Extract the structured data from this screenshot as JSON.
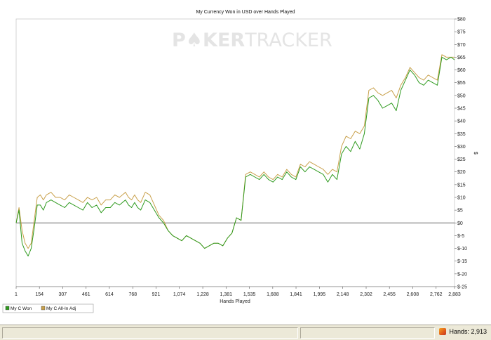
{
  "chart_data": {
    "type": "line",
    "title": "My Currency Won in USD over Hands Played",
    "xlabel": "Hands Played",
    "ylabel": "$",
    "watermark": [
      "P",
      "KER",
      "TRACKER"
    ],
    "x_ticks": [
      "1",
      "154",
      "307",
      "461",
      "614",
      "768",
      "921",
      "1,074",
      "1,228",
      "1,381",
      "1,535",
      "1,688",
      "1,841",
      "1,995",
      "2,148",
      "2,302",
      "2,455",
      "2,608",
      "2,762",
      "2,883"
    ],
    "y_ticks": [
      "$80",
      "$75",
      "$70",
      "$65",
      "$60",
      "$55",
      "$50",
      "$45",
      "$40",
      "$35",
      "$30",
      "$25",
      "$20",
      "$15",
      "$10",
      "$5",
      "$0",
      "$-5",
      "$-10",
      "$-15",
      "$-20",
      "$-25"
    ],
    "xlim": [
      1,
      2883
    ],
    "ylim": [
      -25,
      80
    ],
    "grid": false,
    "legend_position": "bottom-left",
    "series": [
      {
        "name": "My C Won",
        "color": "#2e9a1e",
        "x": [
          1,
          20,
          40,
          60,
          80,
          100,
          120,
          140,
          160,
          180,
          200,
          230,
          260,
          290,
          320,
          350,
          380,
          410,
          440,
          470,
          500,
          530,
          560,
          590,
          620,
          650,
          680,
          700,
          720,
          740,
          760,
          780,
          800,
          820,
          850,
          880,
          910,
          940,
          970,
          1000,
          1030,
          1060,
          1090,
          1120,
          1150,
          1180,
          1210,
          1240,
          1270,
          1300,
          1330,
          1360,
          1390,
          1420,
          1450,
          1480,
          1510,
          1540,
          1570,
          1600,
          1630,
          1660,
          1690,
          1720,
          1750,
          1780,
          1810,
          1840,
          1870,
          1900,
          1930,
          1960,
          1990,
          2020,
          2050,
          2080,
          2110,
          2140,
          2170,
          2200,
          2230,
          2260,
          2290,
          2320,
          2350,
          2380,
          2410,
          2440,
          2470,
          2500,
          2530,
          2560,
          2590,
          2620,
          2650,
          2680,
          2710,
          2740,
          2770,
          2800,
          2830,
          2860,
          2883
        ],
        "y": [
          0,
          5,
          -8,
          -11,
          -13,
          -10,
          -2,
          7,
          7,
          5,
          8,
          9,
          8,
          7,
          6,
          8,
          7,
          6,
          5,
          8,
          6,
          7,
          4,
          6,
          6,
          8,
          7,
          8,
          9,
          7,
          6,
          8,
          6,
          5,
          9,
          8,
          5,
          2,
          0,
          -3,
          -5,
          -6,
          -7,
          -5,
          -6,
          -7,
          -8,
          -10,
          -9,
          -8,
          -8,
          -9,
          -6,
          -4,
          2,
          1,
          18,
          19,
          18,
          17,
          19,
          17,
          16,
          18,
          17,
          20,
          18,
          17,
          22,
          20,
          22,
          21,
          20,
          19,
          16,
          19,
          17,
          27,
          30,
          28,
          32,
          29,
          35,
          49,
          50,
          48,
          45,
          46,
          47,
          44,
          52,
          56,
          60,
          58,
          55,
          54,
          56,
          55,
          54,
          65,
          64,
          65,
          64
        ]
      },
      {
        "name": "My C All-In Adj",
        "color": "#c8a04a",
        "x": [
          1,
          20,
          40,
          60,
          80,
          100,
          120,
          140,
          160,
          180,
          200,
          230,
          260,
          290,
          320,
          350,
          380,
          410,
          440,
          470,
          500,
          530,
          560,
          590,
          620,
          650,
          680,
          700,
          720,
          740,
          760,
          780,
          800,
          820,
          850,
          880,
          910,
          940,
          970,
          1000,
          1030,
          1060,
          1090,
          1120,
          1150,
          1180,
          1210,
          1240,
          1270,
          1300,
          1330,
          1360,
          1390,
          1420,
          1450,
          1480,
          1510,
          1540,
          1570,
          1600,
          1630,
          1660,
          1690,
          1720,
          1750,
          1780,
          1810,
          1840,
          1870,
          1900,
          1930,
          1960,
          1990,
          2020,
          2050,
          2080,
          2110,
          2140,
          2170,
          2200,
          2230,
          2260,
          2290,
          2320,
          2350,
          2380,
          2410,
          2440,
          2470,
          2500,
          2530,
          2560,
          2590,
          2620,
          2650,
          2680,
          2710,
          2740,
          2770,
          2800,
          2830,
          2860,
          2883
        ],
        "y": [
          0,
          6,
          -3,
          -8,
          -10,
          -8,
          1,
          10,
          11,
          9,
          11,
          12,
          10,
          10,
          9,
          11,
          10,
          9,
          8,
          10,
          9,
          10,
          7,
          9,
          9,
          11,
          10,
          11,
          12,
          10,
          9,
          11,
          9,
          8,
          12,
          11,
          7,
          3,
          1,
          -3,
          -5,
          -6,
          -7,
          -5,
          -6,
          -7,
          -8,
          -10,
          -9,
          -8,
          -8,
          -9,
          -6,
          -4,
          2,
          1,
          19,
          20,
          19,
          18,
          20,
          18,
          17,
          19,
          18,
          21,
          19,
          18,
          23,
          22,
          24,
          23,
          22,
          21,
          19,
          21,
          20,
          30,
          34,
          33,
          36,
          35,
          38,
          52,
          53,
          51,
          50,
          51,
          52,
          49,
          54,
          57,
          61,
          59,
          57,
          56,
          58,
          57,
          56,
          66,
          65,
          65,
          65
        ]
      }
    ]
  },
  "status_bar": {
    "hands_label": "Hands: 2,913"
  }
}
